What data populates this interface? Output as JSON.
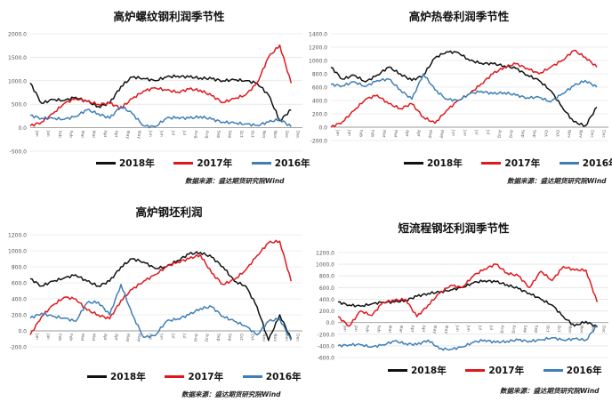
{
  "source_note": "数据来源：盛达期货研究院Wind",
  "colors": {
    "2018年": "#111111",
    "2017年": "#e0181e",
    "2016年": "#3f7fb5"
  },
  "months": [
    "Jan",
    "Feb",
    "Mar",
    "Apr",
    "May",
    "Jun",
    "Jul",
    "Aug",
    "Sep",
    "Oct",
    "Nov",
    "Dec"
  ],
  "chart_data": [
    {
      "type": "line",
      "title": "高炉螺纹钢利润季节性",
      "ylim": [
        -500,
        2000
      ],
      "yticks": [
        "2000.0",
        "1500.0",
        "1000.0",
        "500.0",
        "0.0",
        "-500.0"
      ],
      "ytick_values": [
        2000,
        1500,
        1000,
        500,
        0,
        -500
      ],
      "x": [
        0,
        0.5,
        1,
        1.5,
        2,
        2.5,
        3,
        3.5,
        4,
        4.5,
        5,
        5.5,
        6,
        6.5,
        7,
        7.5,
        8,
        8.5,
        9,
        9.5,
        10,
        10.5,
        11,
        11.5
      ],
      "series": [
        {
          "name": "2018年",
          "values": [
            950,
            520,
            600,
            580,
            650,
            560,
            450,
            520,
            880,
            1080,
            1050,
            1000,
            1080,
            1100,
            1080,
            1060,
            1040,
            1000,
            1020,
            1000,
            950,
            700,
            150,
            380
          ]
        },
        {
          "name": "2017年",
          "values": [
            40,
            120,
            300,
            520,
            620,
            560,
            500,
            520,
            420,
            620,
            780,
            850,
            800,
            760,
            820,
            800,
            680,
            540,
            620,
            700,
            950,
            1500,
            1760,
            950
          ]
        },
        {
          "name": "2016年",
          "values": [
            260,
            200,
            200,
            180,
            240,
            380,
            300,
            200,
            460,
            300,
            40,
            20,
            200,
            220,
            200,
            240,
            180,
            120,
            100,
            80,
            50,
            120,
            180,
            20
          ]
        }
      ]
    },
    {
      "type": "line",
      "title": "高炉热卷利润季节性",
      "ylim": [
        -200,
        1400
      ],
      "yticks": [
        "1400.0",
        "1200.0",
        "1000.0",
        "800.0",
        "600.0",
        "400.0",
        "200.0",
        "0.0",
        "-200.0"
      ],
      "ytick_values": [
        1400,
        1200,
        1000,
        800,
        600,
        400,
        200,
        0,
        -200
      ],
      "x": [
        0,
        0.5,
        1,
        1.5,
        2,
        2.5,
        3,
        3.5,
        4,
        4.5,
        5,
        5.5,
        6,
        6.5,
        7,
        7.5,
        8,
        8.5,
        9,
        9.5,
        10,
        10.5,
        11,
        11.5
      ],
      "series": [
        {
          "name": "2018年",
          "values": [
            900,
            720,
            780,
            680,
            780,
            900,
            800,
            700,
            780,
            1040,
            1130,
            1120,
            1000,
            960,
            950,
            920,
            880,
            780,
            700,
            550,
            300,
            80,
            20,
            300
          ]
        },
        {
          "name": "2017年",
          "values": [
            0,
            80,
            250,
            420,
            480,
            350,
            280,
            350,
            150,
            60,
            250,
            400,
            500,
            650,
            800,
            900,
            950,
            880,
            800,
            900,
            1000,
            1150,
            1050,
            900
          ]
        },
        {
          "name": "2016年",
          "values": [
            640,
            620,
            680,
            610,
            700,
            720,
            560,
            420,
            800,
            560,
            420,
            400,
            500,
            540,
            500,
            520,
            480,
            440,
            450,
            380,
            500,
            620,
            700,
            600
          ]
        }
      ]
    },
    {
      "type": "line",
      "title": "高炉钢坯利润",
      "ylim": [
        -200,
        1200
      ],
      "yticks": [
        "1200.0",
        "1000.0",
        "800.0",
        "600.0",
        "400.0",
        "200.0",
        "0.0",
        "-200.0"
      ],
      "ytick_values": [
        1200,
        1000,
        800,
        600,
        400,
        200,
        0,
        -200
      ],
      "x": [
        0,
        0.5,
        1,
        1.5,
        2,
        2.5,
        3,
        3.5,
        4,
        4.5,
        5,
        5.5,
        6,
        6.5,
        7,
        7.5,
        8,
        8.5,
        9,
        9.5,
        10,
        10.5,
        11,
        11.5
      ],
      "series": [
        {
          "name": "2018年",
          "values": [
            650,
            560,
            620,
            660,
            700,
            620,
            560,
            620,
            800,
            900,
            860,
            780,
            800,
            880,
            960,
            980,
            920,
            800,
            620,
            560,
            300,
            -120,
            200,
            -100
          ]
        },
        {
          "name": "2017年",
          "values": [
            -50,
            180,
            320,
            420,
            400,
            260,
            200,
            150,
            380,
            520,
            620,
            700,
            800,
            860,
            900,
            950,
            720,
            580,
            640,
            760,
            940,
            1100,
            1120,
            620
          ]
        },
        {
          "name": "2016年",
          "values": [
            160,
            220,
            180,
            160,
            120,
            350,
            360,
            200,
            580,
            200,
            -80,
            -60,
            120,
            150,
            200,
            280,
            300,
            180,
            120,
            60,
            -50,
            120,
            150,
            -120
          ]
        }
      ]
    },
    {
      "type": "line",
      "title": "短流程钢坯利润季节性",
      "ylim": [
        -600,
        1200
      ],
      "yticks": [
        "1200.0",
        "1000.0",
        "800.0",
        "600.0",
        "400.0",
        "200.0",
        "0.0",
        "-200.0",
        "-400.0",
        "-600.0"
      ],
      "ytick_values": [
        1200,
        1000,
        800,
        600,
        400,
        200,
        0,
        -200,
        -400,
        -600
      ],
      "x": [
        0,
        0.5,
        1,
        1.5,
        2,
        2.5,
        3,
        3.5,
        4,
        4.5,
        5,
        5.5,
        6,
        6.5,
        7,
        7.5,
        8,
        8.5,
        9,
        9.5,
        10,
        10.5,
        11,
        11.5
      ],
      "series": [
        {
          "name": "2018年",
          "values": [
            350,
            300,
            280,
            320,
            350,
            350,
            380,
            450,
            500,
            520,
            560,
            600,
            680,
            720,
            700,
            650,
            580,
            500,
            400,
            300,
            100,
            -60,
            20,
            -80
          ]
        },
        {
          "name": "2017年",
          "values": [
            100,
            -60,
            200,
            120,
            350,
            380,
            400,
            100,
            300,
            500,
            640,
            600,
            800,
            920,
            1000,
            850,
            800,
            600,
            880,
            720,
            960,
            900,
            900,
            350
          ]
        },
        {
          "name": "2016年",
          "values": [
            -400,
            -380,
            -380,
            -420,
            -380,
            -320,
            -360,
            -380,
            -300,
            -450,
            -460,
            -420,
            -340,
            -300,
            -340,
            -320,
            -300,
            -320,
            -300,
            -260,
            -300,
            -280,
            -300,
            -50
          ]
        }
      ]
    }
  ]
}
